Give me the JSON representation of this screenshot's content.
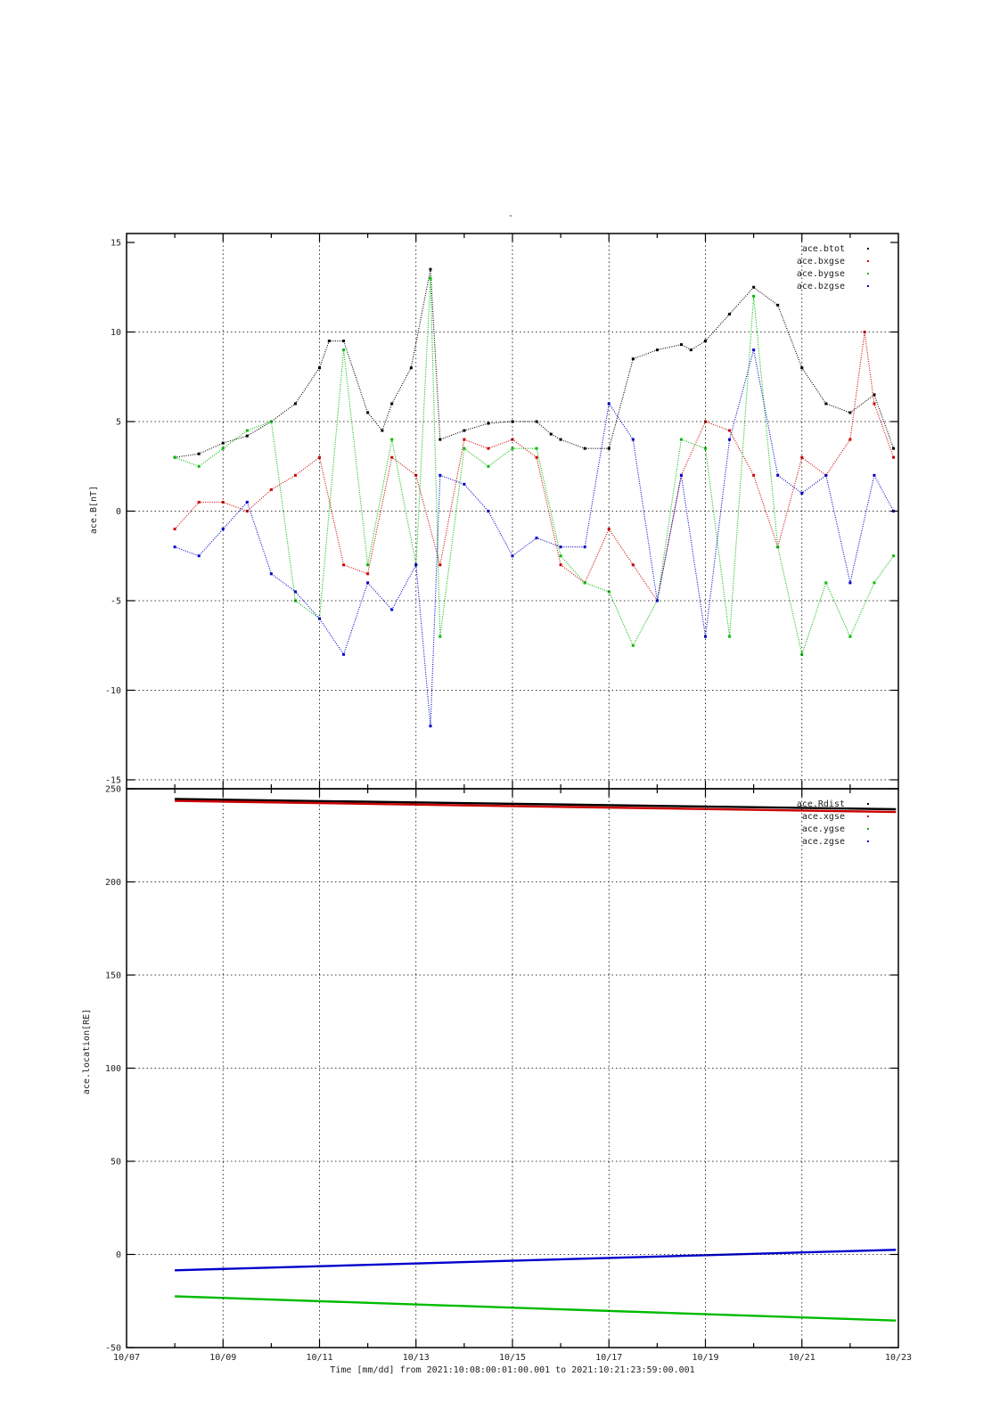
{
  "figure": {
    "top_title": "-",
    "xlabel": "Time [mm/dd]  from 2021:10:08:00:01:00.001  to  2021:10:21:23:59:00.001",
    "x_ticks": [
      "10/07",
      "10/09",
      "10/11",
      "10/13",
      "10/15",
      "10/17",
      "10/19",
      "10/21",
      "10/23"
    ]
  },
  "chart_data": [
    {
      "type": "scatter",
      "ylabel": "ace.B[nT]",
      "x_unit": "days since 10/07 00:00",
      "xlim": [
        0,
        16
      ],
      "ylim": [
        -15.5,
        15.5
      ],
      "y_ticks": [
        15,
        10,
        5,
        0,
        -5,
        -10,
        -15
      ],
      "legend_position": "top-right",
      "series": [
        {
          "name": "ace.btot",
          "color": "#000000",
          "x": [
            1.0,
            1.5,
            2.0,
            2.5,
            3.0,
            3.5,
            4.0,
            4.2,
            4.5,
            5.0,
            5.3,
            5.5,
            5.9,
            6.3,
            6.5,
            7.0,
            7.5,
            8.0,
            8.5,
            8.8,
            9.0,
            9.5,
            10.0,
            10.5,
            11.0,
            11.5,
            11.7,
            12.0,
            12.5,
            13.0,
            13.5,
            14.0,
            14.5,
            15.0,
            15.5,
            15.9
          ],
          "y": [
            3.0,
            3.2,
            3.8,
            4.2,
            5.0,
            6.0,
            8.0,
            9.5,
            9.5,
            5.5,
            4.5,
            6.0,
            8.0,
            13.5,
            4.0,
            4.5,
            4.9,
            5.0,
            5.0,
            4.3,
            4.0,
            3.5,
            3.5,
            8.5,
            9.0,
            9.3,
            9.0,
            9.5,
            11.0,
            12.5,
            11.5,
            8.0,
            6.0,
            5.5,
            6.5,
            3.5
          ]
        },
        {
          "name": "ace.bxgse",
          "color": "#cc0000",
          "x": [
            1.0,
            1.5,
            2.0,
            2.5,
            3.0,
            3.5,
            4.0,
            4.5,
            5.0,
            5.5,
            6.0,
            6.5,
            7.0,
            7.5,
            8.0,
            8.5,
            9.0,
            9.5,
            10.0,
            10.5,
            11.0,
            11.5,
            12.0,
            12.5,
            13.0,
            13.5,
            14.0,
            14.5,
            15.0,
            15.3,
            15.5,
            15.9
          ],
          "y": [
            -1.0,
            0.5,
            0.5,
            0.0,
            1.2,
            2.0,
            3.0,
            -3.0,
            -3.5,
            3.0,
            2.0,
            -3.0,
            4.0,
            3.5,
            4.0,
            3.0,
            -3.0,
            -4.0,
            -1.0,
            -3.0,
            -5.0,
            2.0,
            5.0,
            4.5,
            2.0,
            -2.0,
            3.0,
            2.0,
            4.0,
            10.0,
            6.0,
            3.0
          ]
        },
        {
          "name": "ace.bygse",
          "color": "#00bb00",
          "x": [
            1.0,
            1.5,
            2.0,
            2.5,
            3.0,
            3.5,
            4.0,
            4.5,
            5.0,
            5.5,
            6.0,
            6.3,
            6.5,
            7.0,
            7.5,
            8.0,
            8.5,
            9.0,
            9.5,
            10.0,
            10.5,
            11.0,
            11.5,
            12.0,
            12.5,
            13.0,
            13.5,
            14.0,
            14.5,
            15.0,
            15.5,
            15.9
          ],
          "y": [
            3.0,
            2.5,
            3.5,
            4.5,
            5.0,
            -5.0,
            -6.0,
            9.0,
            -3.0,
            4.0,
            -3.0,
            13.0,
            -7.0,
            3.5,
            2.5,
            3.5,
            3.5,
            -2.5,
            -4.0,
            -4.5,
            -7.5,
            -5.0,
            4.0,
            3.5,
            -7.0,
            12.0,
            -2.0,
            -8.0,
            -4.0,
            -7.0,
            -4.0,
            -2.5
          ]
        },
        {
          "name": "ace.bzgse",
          "color": "#0000cc",
          "x": [
            1.0,
            1.5,
            2.0,
            2.5,
            3.0,
            3.5,
            4.0,
            4.5,
            5.0,
            5.5,
            6.0,
            6.3,
            6.5,
            7.0,
            7.5,
            8.0,
            8.5,
            9.0,
            9.5,
            10.0,
            10.5,
            11.0,
            11.5,
            12.0,
            12.5,
            13.0,
            13.5,
            14.0,
            14.5,
            15.0,
            15.5,
            15.9
          ],
          "y": [
            -2.0,
            -2.5,
            -1.0,
            0.5,
            -3.5,
            -4.5,
            -6.0,
            -8.0,
            -4.0,
            -5.5,
            -3.0,
            -12.0,
            2.0,
            1.5,
            0.0,
            -2.5,
            -1.5,
            -2.0,
            -2.0,
            6.0,
            4.0,
            -5.0,
            2.0,
            -7.0,
            4.0,
            9.0,
            2.0,
            1.0,
            2.0,
            -4.0,
            2.0,
            0.0
          ]
        }
      ]
    },
    {
      "type": "line",
      "ylabel": "ace.location[RE]",
      "x_unit": "days since 10/07 00:00",
      "xlim": [
        0,
        16
      ],
      "ylim": [
        -50,
        250
      ],
      "y_ticks": [
        250,
        200,
        150,
        100,
        50,
        0,
        -50
      ],
      "legend_position": "top-right",
      "series": [
        {
          "name": "ace.Rdist",
          "color": "#000000",
          "x": [
            1.0,
            15.95
          ],
          "y": [
            244.5,
            239.0
          ]
        },
        {
          "name": "ace.xgse",
          "color": "#cc0000",
          "x": [
            1.0,
            15.95
          ],
          "y": [
            243.5,
            237.5
          ]
        },
        {
          "name": "ace.ygse",
          "color": "#00bb00",
          "x": [
            1.0,
            15.95
          ],
          "y": [
            -22.5,
            -35.5
          ]
        },
        {
          "name": "ace.zgse",
          "color": "#0000cc",
          "x": [
            1.0,
            15.95
          ],
          "y": [
            -8.5,
            2.5
          ]
        }
      ]
    }
  ]
}
